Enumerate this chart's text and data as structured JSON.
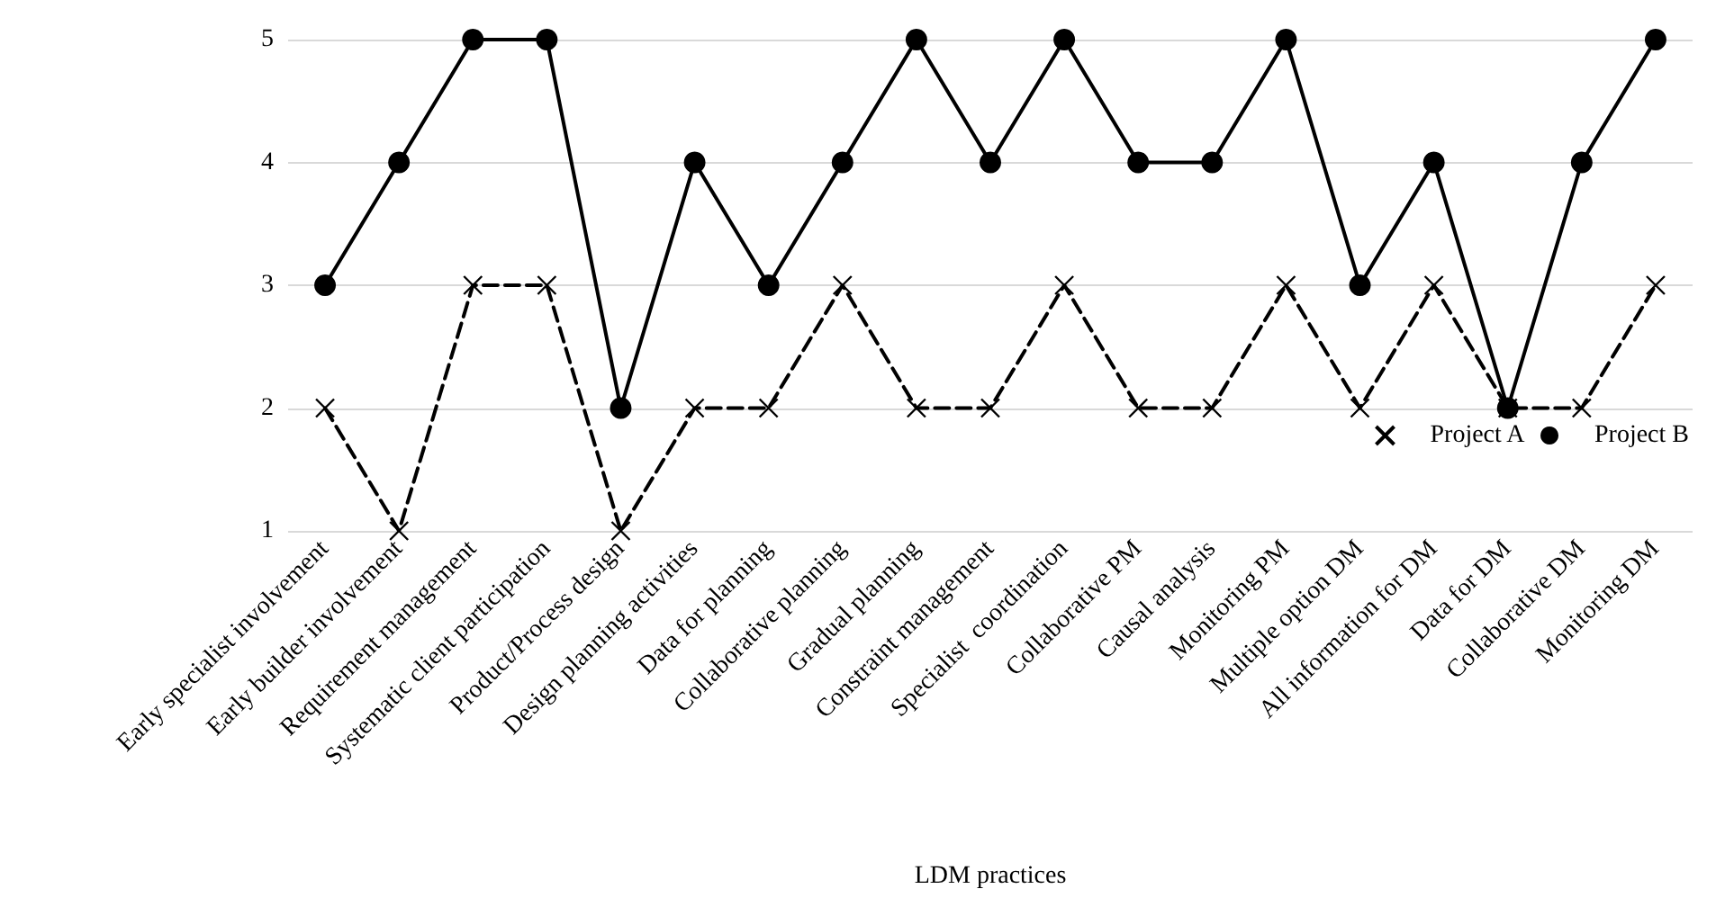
{
  "chart_data": {
    "type": "line",
    "xlabel": "LDM practices",
    "categories": [
      "Early specialist involvement",
      "Early builder involvement",
      "Requirement management",
      "Systematic client participation",
      "Product/Process design",
      "Design planning activities",
      "Data for planning",
      "Collaborative planning",
      "Gradual planning",
      "Constraint management",
      "Specialist  coordination",
      "Collaborative PM",
      "Causal analysis",
      "Monitoring PM",
      "Multiple option DM",
      "All information for DM",
      "Data for DM",
      "Collaborative DM",
      "Monitoring DM"
    ],
    "series": [
      {
        "name": "Project A",
        "color": "#000000",
        "marker": "cross",
        "line_style": "dashed",
        "values": [
          2,
          1,
          3,
          3,
          1,
          2,
          2,
          3,
          2,
          2,
          3,
          2,
          2,
          3,
          2,
          3,
          2,
          2,
          3
        ]
      },
      {
        "name": "Project B",
        "color": "#000000",
        "marker": "circle",
        "line_style": "solid",
        "values": [
          3,
          4,
          5,
          5,
          2,
          4,
          3,
          4,
          5,
          4,
          5,
          4,
          4,
          5,
          3,
          4,
          2,
          4,
          5
        ]
      }
    ],
    "ylim": [
      1,
      5
    ],
    "yticks": [
      1,
      2,
      3,
      4,
      5
    ],
    "grid": "y",
    "legend": "right"
  }
}
